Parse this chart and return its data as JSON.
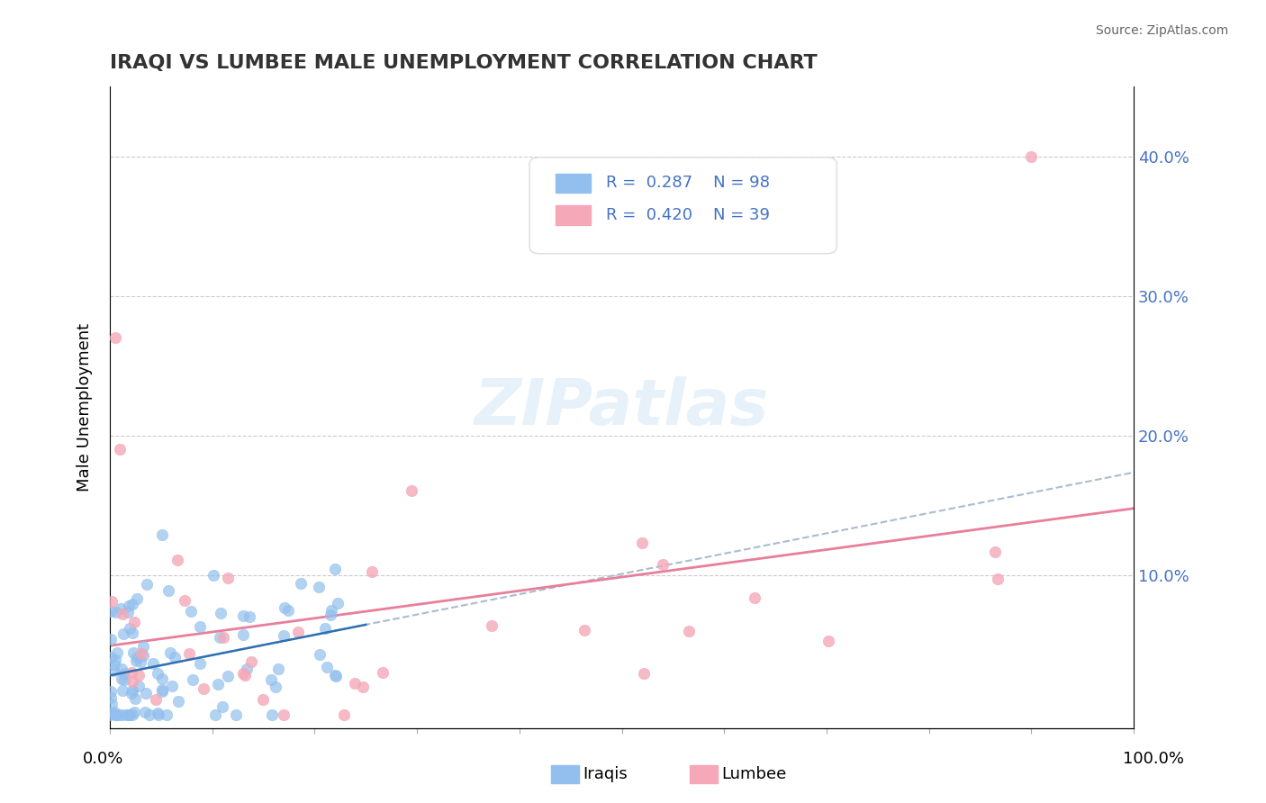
{
  "title": "IRAQI VS LUMBEE MALE UNEMPLOYMENT CORRELATION CHART",
  "source": "Source: ZipAtlas.com",
  "ylabel": "Male Unemployment",
  "iraqis_R": "0.287",
  "iraqis_N": "98",
  "lumbee_R": "0.420",
  "lumbee_N": "39",
  "iraqi_color": "#92BFED",
  "lumbee_color": "#F4A8B8",
  "iraqi_line_dash_color": "#AABCD0",
  "iraqi_line_solid_color": "#3070B0",
  "lumbee_line_color": "#E87F9A",
  "background_color": "#FFFFFF",
  "watermark": "ZIPatlas",
  "ytick_values": [
    0.1,
    0.2,
    0.3,
    0.4
  ],
  "xlim": [
    0.0,
    1.0
  ],
  "ylim": [
    -0.01,
    0.45
  ]
}
